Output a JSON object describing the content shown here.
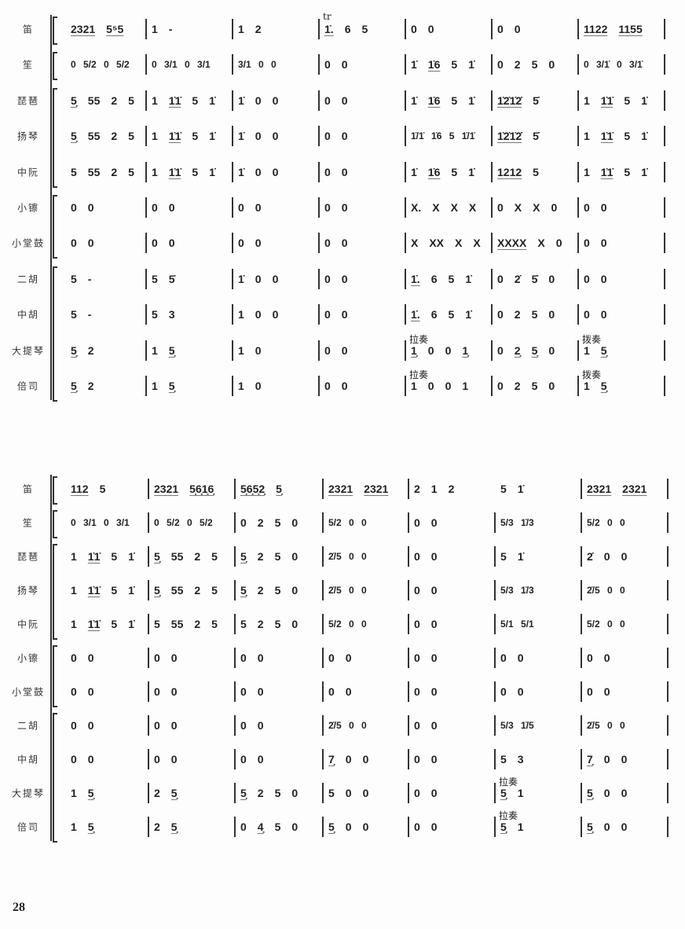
{
  "page_number": "28",
  "systems": [
    {
      "rows": [
        {
          "label": "笛",
          "measures": [
            "2321 5⁵5",
            "1 -",
            "1 2",
            {
              "n": "1̇. 6 5",
              "above": "tr"
            },
            "0 0",
            "0 0",
            "1122 1155"
          ]
        },
        {
          "label": "笙",
          "measures": [
            "0 5/2 0 5/2",
            "0 3/1 0 3/1",
            "3/1 0 0",
            "0 0",
            "1̇ 1̇6 5 1̇",
            "0 2 5 0",
            "0 3/1̇ 0 3/1̇"
          ]
        },
        {
          "label": "琵琶",
          "measures": [
            "5̣ 55 2 5",
            "1 1̇1̇ 5 1̇",
            "1̇ 0 0",
            "0 0",
            "1̇ 1̇6 5 1̇",
            "1̇2̇1̇2̇ 5̇",
            "1 1̇1̇ 5 1̇"
          ]
        },
        {
          "label": "扬琴",
          "measures": [
            "5̣ 55 2 5",
            "1 1̇1̇ 5 1̇",
            "1̇ 0 0",
            "0 0",
            "1̇/1̇ 1̇6 5 1̇/1̇",
            "1̇2̇1̇2̇ 5̇",
            "1 1̇1̇ 5 1̇"
          ]
        },
        {
          "label": "中阮",
          "measures": [
            "5 55 2 5",
            "1 1̇1̇ 5 1̇",
            "1̇ 0 0",
            "0 0",
            "1̇ 1̇6 5 1̇",
            "1212 5",
            "1 1̇1̇ 5 1̇"
          ]
        },
        {
          "label": "小镲",
          "measures": [
            "0 0",
            "0 0",
            "0 0",
            "0 0",
            "X. X X X",
            "0 X X 0",
            "0 0"
          ]
        },
        {
          "label": "小堂鼓",
          "measures": [
            "0 0",
            "0 0",
            "0 0",
            "0 0",
            "X XX X X",
            "XXXX X 0",
            "0 0"
          ]
        },
        {
          "label": "二胡",
          "measures": [
            "5 -",
            "5 5̇",
            "1̇ 0 0",
            "0 0",
            "1̇. 6 5 1̇",
            "0 2̇ 5̇ 0",
            "0 0"
          ]
        },
        {
          "label": "中胡",
          "measures": [
            "5 -",
            "5 3",
            "1 0 0",
            "0 0",
            "1̇. 6 5 1̇",
            "0 2 5 0",
            "0 0"
          ]
        },
        {
          "label": "大提琴",
          "measures": [
            "5̣ 2",
            "1 5̣",
            "1 0",
            "0 0",
            {
              "n": "1̣ 0 0 1̣",
              "above": "拉奏"
            },
            "0 2̣ 5̣ 0",
            {
              "n": "1 5̣",
              "above": "拨奏"
            }
          ]
        },
        {
          "label": "倍司",
          "measures": [
            "5̣ 2",
            "1 5̣",
            "1 0",
            "0 0",
            {
              "n": "1 0 0 1",
              "above": "拉奏"
            },
            "0 2 5 0",
            {
              "n": "1 5̣",
              "above": "拨奏"
            }
          ]
        }
      ]
    },
    {
      "rows": [
        {
          "label": "笛",
          "measures": [
            "112 5",
            "2321 5̣6̣1̣6̣",
            "5̣6̣5̣2̣ 5̣",
            "2321 2321",
            "2 1 2",
            "5 1̇",
            "2321 2321"
          ]
        },
        {
          "label": "笙",
          "measures": [
            "0 3/1 0 3/1",
            "0 5/2 0 5/2",
            "0 2 5 0",
            "5/2 0 0",
            "0 0",
            "5/3 1̇/3",
            "5/2 0 0"
          ]
        },
        {
          "label": "琵琶",
          "measures": [
            "1 1̇1̇ 5 1̇",
            "5̣ 55 2 5",
            "5̣ 2 5 0",
            "2̇/5 0 0",
            "0 0",
            "5 1̇",
            "2̇ 0 0"
          ]
        },
        {
          "label": "扬琴",
          "measures": [
            "1 1̇1̇ 5 1̇",
            "5̣ 55 2 5",
            "5̣ 2 5 0",
            "2̇/5 0 0",
            "0 0",
            "5/3 1̇/3",
            "2̇/5 0 0"
          ]
        },
        {
          "label": "中阮",
          "measures": [
            "1 1̇1̇ 5 1̇",
            "5 55 2 5",
            "5 2 5 0",
            "5/2 0 0",
            "0 0",
            "5/1 5/1",
            "5/2 0 0"
          ]
        },
        {
          "label": "小镲",
          "measures": [
            "0 0",
            "0 0",
            "0 0",
            "0 0",
            "0 0",
            "0 0",
            "0 0"
          ]
        },
        {
          "label": "小堂鼓",
          "measures": [
            "0 0",
            "0 0",
            "0 0",
            "0 0",
            "0 0",
            "0 0",
            "0 0"
          ]
        },
        {
          "label": "二胡",
          "measures": [
            "0 0",
            "0 0",
            "0 0",
            "2̇/5 0 0",
            "0 0",
            "5/3 1̇/5",
            "2̇/5 0 0"
          ]
        },
        {
          "label": "中胡",
          "measures": [
            "0 0",
            "0 0",
            "0 0",
            "7̣ 0 0",
            "0 0",
            "5 3",
            "7̣ 0 0"
          ]
        },
        {
          "label": "大提琴",
          "measures": [
            "1 5̣",
            "2 5̣",
            "5̣ 2 5 0",
            "5 0 0",
            "0 0",
            {
              "n": "5̣ 1",
              "above": "拉奏"
            },
            "5̣ 0 0"
          ]
        },
        {
          "label": "倍司",
          "measures": [
            "1 5̣",
            "2 5̣",
            "0 4̣ 5 0",
            "5̣ 0 0",
            "0 0",
            {
              "n": "5̣ 1",
              "above": "拉奏"
            },
            "5̣ 0 0"
          ]
        }
      ]
    }
  ]
}
